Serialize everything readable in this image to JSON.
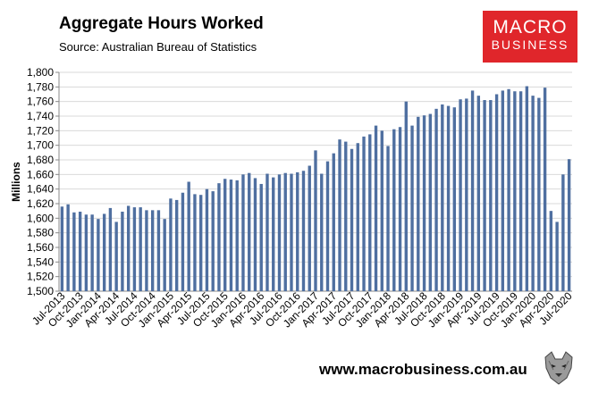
{
  "header": {
    "title": "Aggregate Hours Worked",
    "subtitle": "Source: Australian Bureau of Statistics"
  },
  "logo": {
    "line1": "MACRO",
    "line2": "BUSINESS",
    "color": "#e0262b"
  },
  "footer": {
    "url": "www.macrobusiness.com.au"
  },
  "chart_data": {
    "type": "bar",
    "title": "Aggregate Hours Worked",
    "ylabel": "Millions",
    "ylim": [
      1500,
      1800
    ],
    "ytick_step": 20,
    "grid": true,
    "bar_color": "#4f6fa0",
    "categories": [
      "Jul-2013",
      "Aug-2013",
      "Sep-2013",
      "Oct-2013",
      "Nov-2013",
      "Dec-2013",
      "Jan-2014",
      "Feb-2014",
      "Mar-2014",
      "Apr-2014",
      "May-2014",
      "Jun-2014",
      "Jul-2014",
      "Aug-2014",
      "Sep-2014",
      "Oct-2014",
      "Nov-2014",
      "Dec-2014",
      "Jan-2015",
      "Feb-2015",
      "Mar-2015",
      "Apr-2015",
      "May-2015",
      "Jun-2015",
      "Jul-2015",
      "Aug-2015",
      "Sep-2015",
      "Oct-2015",
      "Nov-2015",
      "Dec-2015",
      "Jan-2016",
      "Feb-2016",
      "Mar-2016",
      "Apr-2016",
      "May-2016",
      "Jun-2016",
      "Jul-2016",
      "Aug-2016",
      "Sep-2016",
      "Oct-2016",
      "Nov-2016",
      "Dec-2016",
      "Jan-2017",
      "Feb-2017",
      "Mar-2017",
      "Apr-2017",
      "May-2017",
      "Jun-2017",
      "Jul-2017",
      "Aug-2017",
      "Sep-2017",
      "Oct-2017",
      "Nov-2017",
      "Dec-2017",
      "Jan-2018",
      "Feb-2018",
      "Mar-2018",
      "Apr-2018",
      "May-2018",
      "Jun-2018",
      "Jul-2018",
      "Aug-2018",
      "Sep-2018",
      "Oct-2018",
      "Nov-2018",
      "Dec-2018",
      "Jan-2019",
      "Feb-2019",
      "Mar-2019",
      "Apr-2019",
      "May-2019",
      "Jun-2019",
      "Jul-2019",
      "Aug-2019",
      "Sep-2019",
      "Oct-2019",
      "Nov-2019",
      "Dec-2019",
      "Jan-2020",
      "Feb-2020",
      "Mar-2020",
      "Apr-2020",
      "May-2020",
      "Jun-2020",
      "Jul-2020"
    ],
    "xtick_labels": [
      "Jul-2013",
      "Oct-2013",
      "Jan-2014",
      "Apr-2014",
      "Jul-2014",
      "Oct-2014",
      "Jan-2015",
      "Apr-2015",
      "Jul-2015",
      "Oct-2015",
      "Jan-2016",
      "Apr-2016",
      "Jul-2016",
      "Oct-2016",
      "Jan-2017",
      "Apr-2017",
      "Jul-2017",
      "Oct-2017",
      "Jan-2018",
      "Apr-2018",
      "Jul-2018",
      "Oct-2018",
      "Jan-2019",
      "Apr-2019",
      "Jul-2019",
      "Oct-2019",
      "Jan-2020",
      "Apr-2020",
      "Jul-2020"
    ],
    "values": [
      1616,
      1619,
      1608,
      1609,
      1605,
      1605,
      1599,
      1606,
      1614,
      1595,
      1609,
      1617,
      1615,
      1615,
      1611,
      1611,
      1611,
      1599,
      1627,
      1625,
      1635,
      1650,
      1633,
      1632,
      1640,
      1637,
      1648,
      1654,
      1653,
      1652,
      1660,
      1662,
      1655,
      1647,
      1661,
      1656,
      1660,
      1662,
      1661,
      1663,
      1665,
      1672,
      1693,
      1661,
      1678,
      1689,
      1708,
      1705,
      1695,
      1703,
      1712,
      1715,
      1727,
      1720,
      1699,
      1722,
      1725,
      1760,
      1727,
      1739,
      1741,
      1743,
      1750,
      1756,
      1754,
      1752,
      1763,
      1764,
      1775,
      1768,
      1762,
      1762,
      1770,
      1775,
      1777,
      1774,
      1774,
      1781,
      1768,
      1765,
      1779,
      1610,
      1595,
      1660,
      1681
    ]
  }
}
